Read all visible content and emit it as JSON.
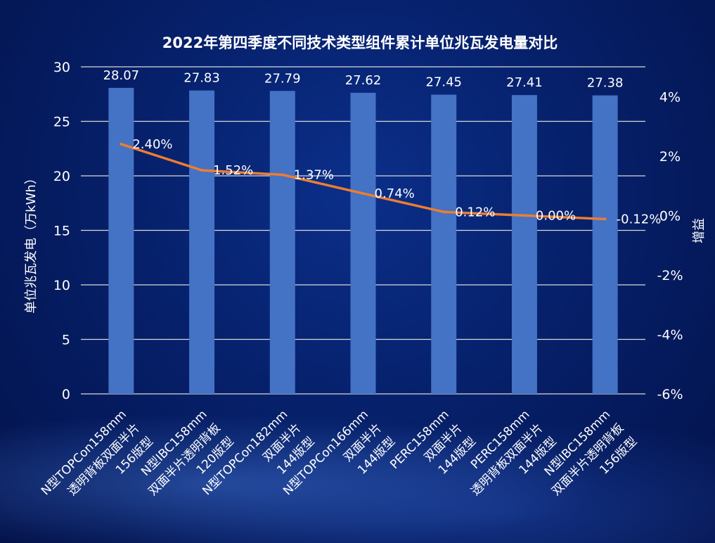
{
  "chart_data": {
    "type": "bar",
    "title": "2022年第四季度不同技术类型组件累计单位兆瓦发电量对比",
    "ylabel": "单位兆瓦发电（万kWh）",
    "y2label": "增益",
    "ylim": [
      0,
      30
    ],
    "yticks": [
      "0",
      "5",
      "10",
      "15",
      "20",
      "25",
      "30"
    ],
    "y2lim": [
      -6,
      5
    ],
    "y2ticks": [
      "-6%",
      "-4%",
      "-2%",
      "0%",
      "2%",
      "4%"
    ],
    "grid": true,
    "categories": [
      [
        "N型TOPCon158mm",
        "透明背板双面半片",
        "156版型"
      ],
      [
        "N型IBC158mm",
        "双面半片透明背板",
        "120版型"
      ],
      [
        "N型TOPCon182mm",
        "双面半片",
        "144版型"
      ],
      [
        "N型TOPCon166mm",
        "双面半片",
        "144版型"
      ],
      [
        "PERC158mm",
        "双面半片",
        "144版型"
      ],
      [
        "PERC158mm",
        "透明背板双面半片",
        "144版型"
      ],
      [
        "N型IBC158mm",
        "双面半片透明背板",
        "156版型"
      ]
    ],
    "series": [
      {
        "kind": "bar",
        "values": [
          28.07,
          27.83,
          27.79,
          27.62,
          27.45,
          27.41,
          27.38
        ],
        "labels": [
          "28.07",
          "27.83",
          "27.79",
          "27.62",
          "27.45",
          "27.41",
          "27.38"
        ],
        "color": "#4472c4"
      },
      {
        "kind": "line",
        "axis": "right",
        "values": [
          2.4,
          1.52,
          1.37,
          0.74,
          0.12,
          0.0,
          -0.12
        ],
        "labels": [
          "2.40%",
          "1.52%",
          "1.37%",
          "0.74%",
          "0.12%",
          "0.00%",
          "-0.12%"
        ],
        "color": "#ed7d31"
      }
    ],
    "text_color": "#ffffff"
  }
}
